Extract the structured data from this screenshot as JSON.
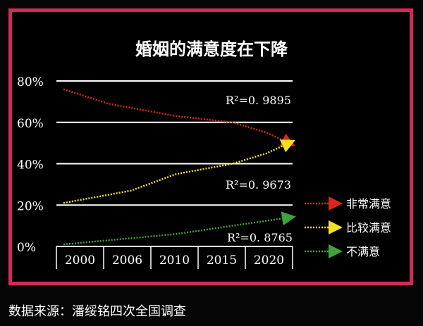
{
  "source": "数据来源：潘绥铭四次全国调查",
  "colors": {
    "border": "#d4285a",
    "background": "#000000",
    "series": [
      "#d9261c",
      "#f2e21f",
      "#3da33a"
    ]
  },
  "chart_data": {
    "type": "line",
    "title": "婚姻的满意度在下降",
    "xlabel": "",
    "ylabel": "",
    "x_ticks": [
      "2000",
      "2006",
      "2010",
      "2015",
      "2020"
    ],
    "x_range": [
      2000,
      2020
    ],
    "ylim": [
      0,
      80
    ],
    "y_ticks": [
      "0%",
      "20%",
      "40%",
      "60%",
      "80%"
    ],
    "grid": "horizontal",
    "legend_position": "right",
    "series": [
      {
        "name": "非常满意",
        "color": "#d9261c",
        "r2_label": "R²=0. 9895",
        "points": [
          [
            2000,
            76
          ],
          [
            2004,
            69
          ],
          [
            2010,
            63
          ],
          [
            2015,
            60
          ],
          [
            2018,
            55
          ],
          [
            2020,
            50
          ]
        ]
      },
      {
        "name": "比较满意",
        "color": "#f2e21f",
        "r2_label": "R²=0. 9673",
        "points": [
          [
            2000,
            21
          ],
          [
            2006,
            27
          ],
          [
            2010,
            35
          ],
          [
            2015,
            40
          ],
          [
            2018,
            45
          ],
          [
            2020,
            50
          ]
        ]
      },
      {
        "name": "不满意",
        "color": "#3da33a",
        "r2_label": "R²=0. 8765",
        "points": [
          [
            2000,
            1
          ],
          [
            2006,
            4
          ],
          [
            2010,
            6
          ],
          [
            2015,
            10
          ],
          [
            2020,
            14
          ]
        ]
      }
    ]
  }
}
